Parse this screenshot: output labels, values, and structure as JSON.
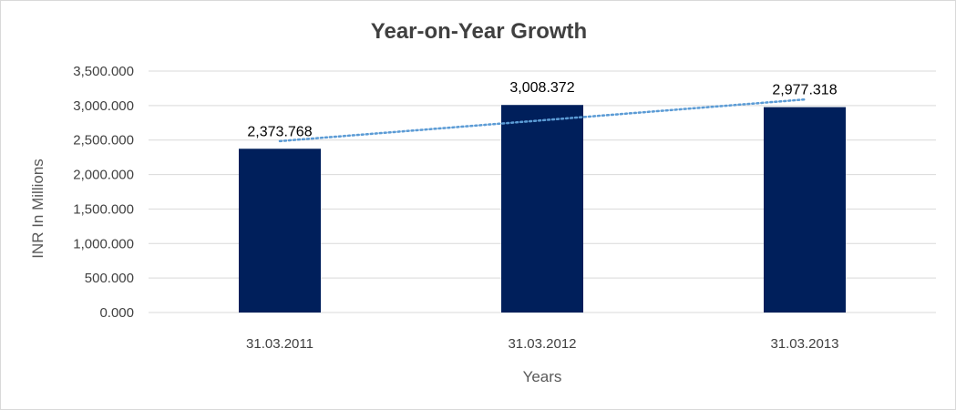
{
  "chart_data": {
    "type": "bar",
    "title": "Year-on-Year Growth",
    "xlabel": "Years",
    "ylabel": "INR In Millions",
    "categories": [
      "31.03.2011",
      "31.03.2012",
      "31.03.2013"
    ],
    "values": [
      2373.768,
      3008.372,
      2977.318
    ],
    "value_labels": [
      "2,373.768",
      "3,008.372",
      "2,977.318"
    ],
    "ylim": [
      0,
      3500
    ],
    "yticks": [
      0,
      500,
      1000,
      1500,
      2000,
      2500,
      3000,
      3500
    ],
    "ytick_labels": [
      "0.000",
      "500.000",
      "1,000.000",
      "1,500.000",
      "2,000.000",
      "2,500.000",
      "3,000.000",
      "3,500.000"
    ],
    "grid": true,
    "trendline": {
      "type": "linear",
      "style": "dotted"
    },
    "colors": {
      "bar": "#001f5b",
      "trendline": "#5b9bd5",
      "grid": "#d9d9d9"
    }
  }
}
